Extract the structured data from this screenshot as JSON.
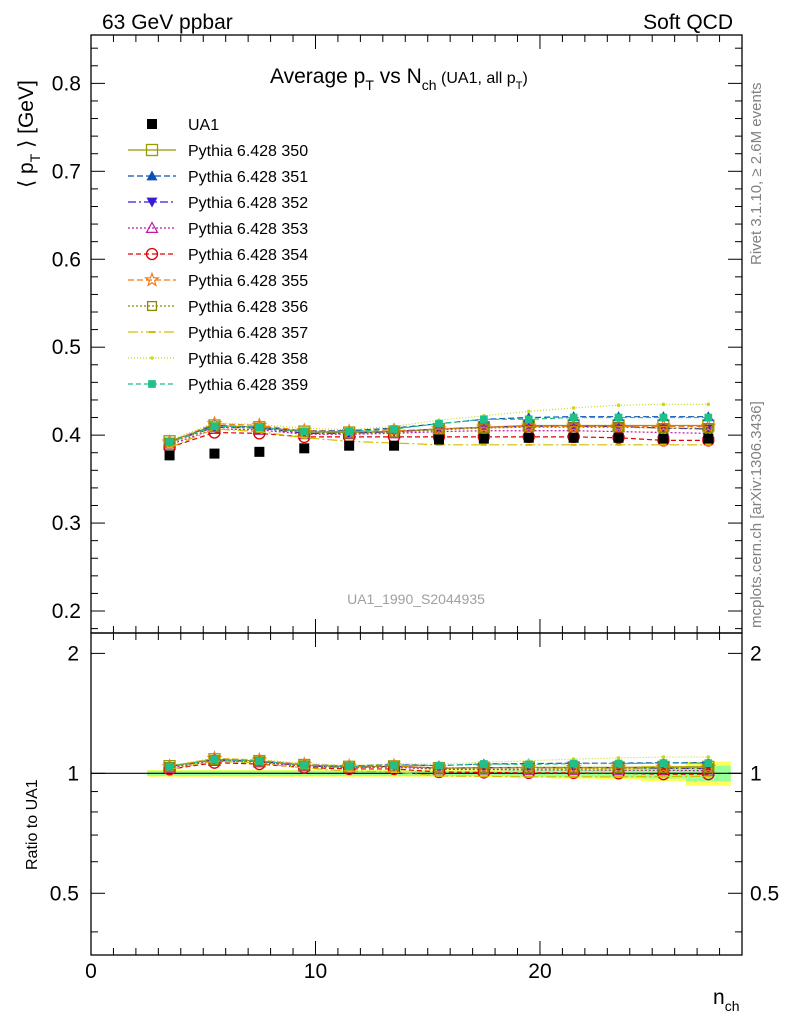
{
  "header": {
    "left": "63 GeV ppbar",
    "right": "Soft QCD"
  },
  "side_text": {
    "rivet": "Rivet 3.1.10, ≥ 2.6M events",
    "mcplots": "mcplots.cern.ch [arXiv:1306.3436]"
  },
  "watermark": "UA1_1990_S2044935",
  "chart_data": {
    "type": "line",
    "title": "Average p_T vs N_ch (UA1, all p_T)",
    "title_parts": {
      "main1": "Average p",
      "sub1": "T",
      "main2": " vs N",
      "sub2": "ch",
      "small": " (UA1, all p",
      "small_sub": "T",
      "small_end": ")"
    },
    "ylabel": "⟨ p_T ⟩ [GeV]",
    "ylabel_parts": {
      "main": "⟨ p",
      "sub": "T",
      "end": " ⟩ [GeV]"
    },
    "xlabel": "n_ch",
    "xlabel_parts": {
      "main": "n",
      "sub": "ch"
    },
    "ratio_ylabel": "Ratio to UA1",
    "xlim": [
      0,
      29
    ],
    "ylim": [
      0.175,
      0.855
    ],
    "ratio_ylim": [
      0.35,
      2.25
    ],
    "x_ticks": [
      0,
      10,
      20
    ],
    "y_ticks": [
      0.2,
      0.3,
      0.4,
      0.5,
      0.6,
      0.7,
      0.8
    ],
    "y_tick_labels": [
      "0.2",
      "0.3",
      "0.4",
      "0.5",
      "0.6",
      "0.7",
      "0.8"
    ],
    "ratio_ticks": [
      0.5,
      1,
      2
    ],
    "ratio_tick_labels": [
      "0.5",
      "1",
      "2"
    ],
    "legend_position": "top-left",
    "x": [
      3.5,
      5.5,
      7.5,
      9.5,
      11.5,
      13.5,
      15.5,
      17.5,
      19.5,
      21.5,
      23.5,
      25.5,
      27.5
    ],
    "data": {
      "name": "UA1",
      "y": [
        0.377,
        0.379,
        0.381,
        0.385,
        0.388,
        0.388,
        0.395,
        0.396,
        0.397,
        0.397,
        0.397,
        0.396,
        0.396
      ]
    },
    "series": [
      {
        "name": "Pythia 6.428 350",
        "color": "#999900",
        "marker": "square-open",
        "dash": "solid",
        "y": [
          0.393,
          0.411,
          0.409,
          0.404,
          0.403,
          0.404,
          0.407,
          0.409,
          0.411,
          0.411,
          0.411,
          0.411,
          0.411
        ]
      },
      {
        "name": "Pythia 6.428 351",
        "color": "#0b50b5",
        "marker": "triangle-up",
        "dash": "6,3",
        "y": [
          0.393,
          0.411,
          0.409,
          0.405,
          0.405,
          0.408,
          0.413,
          0.418,
          0.42,
          0.421,
          0.421,
          0.421,
          0.421
        ]
      },
      {
        "name": "Pythia 6.428 352",
        "color": "#3a1ad0",
        "marker": "triangle-down",
        "dash": "8,3,2,3",
        "y": [
          0.392,
          0.409,
          0.408,
          0.402,
          0.402,
          0.404,
          0.407,
          0.409,
          0.41,
          0.41,
          0.41,
          0.408,
          0.407
        ]
      },
      {
        "name": "Pythia 6.428 353",
        "color": "#c01aa5",
        "marker": "triangle-open",
        "dash": "2,2",
        "y": [
          0.389,
          0.407,
          0.406,
          0.401,
          0.401,
          0.402,
          0.404,
          0.405,
          0.405,
          0.405,
          0.404,
          0.403,
          0.402
        ]
      },
      {
        "name": "Pythia 6.428 354",
        "color": "#e00000",
        "marker": "circle-open",
        "dash": "5,3",
        "y": [
          0.386,
          0.403,
          0.402,
          0.398,
          0.398,
          0.398,
          0.398,
          0.398,
          0.398,
          0.398,
          0.397,
          0.394,
          0.394
        ]
      },
      {
        "name": "Pythia 6.428 355",
        "color": "#f27a15",
        "marker": "star-open",
        "dash": "6,3",
        "y": [
          0.392,
          0.413,
          0.411,
          0.405,
          0.404,
          0.405,
          0.407,
          0.409,
          0.41,
          0.41,
          0.41,
          0.41,
          0.41
        ]
      },
      {
        "name": "Pythia 6.428 356",
        "color": "#8a8a00",
        "marker": "square-open-small",
        "dash": "2,2",
        "y": [
          0.391,
          0.409,
          0.408,
          0.403,
          0.402,
          0.403,
          0.406,
          0.408,
          0.409,
          0.409,
          0.409,
          0.408,
          0.408
        ]
      },
      {
        "name": "Pythia 6.428 357",
        "color": "#d6bc00",
        "marker": "dash",
        "dash": "10,3,2,3",
        "y": [
          0.386,
          0.407,
          0.404,
          0.397,
          0.393,
          0.391,
          0.389,
          0.389,
          0.389,
          0.389,
          0.389,
          0.389,
          0.389
        ]
      },
      {
        "name": "Pythia 6.428 358",
        "color": "#c8d820",
        "marker": "dot",
        "dash": "1,2",
        "y": [
          0.394,
          0.414,
          0.412,
          0.408,
          0.406,
          0.41,
          0.417,
          0.422,
          0.427,
          0.431,
          0.434,
          0.435,
          0.435
        ]
      },
      {
        "name": "Pythia 6.428 359",
        "color": "#20c08a",
        "marker": "square-filled-small",
        "dash": "5,3",
        "y": [
          0.392,
          0.41,
          0.409,
          0.404,
          0.404,
          0.407,
          0.413,
          0.418,
          0.418,
          0.42,
          0.42,
          0.42,
          0.42
        ]
      }
    ],
    "ratio_band": {
      "x_edges": [
        2.5,
        4.5,
        6.5,
        8.5,
        10.5,
        12.5,
        14.5,
        16.5,
        18.5,
        20.5,
        22.5,
        24.5,
        26.5,
        28.5
      ],
      "inner": [
        0.015,
        0.015,
        0.015,
        0.015,
        0.015,
        0.015,
        0.015,
        0.015,
        0.018,
        0.02,
        0.025,
        0.03,
        0.045
      ],
      "outer": [
        0.02,
        0.02,
        0.02,
        0.02,
        0.02,
        0.02,
        0.02,
        0.02,
        0.025,
        0.03,
        0.035,
        0.045,
        0.07
      ]
    }
  }
}
